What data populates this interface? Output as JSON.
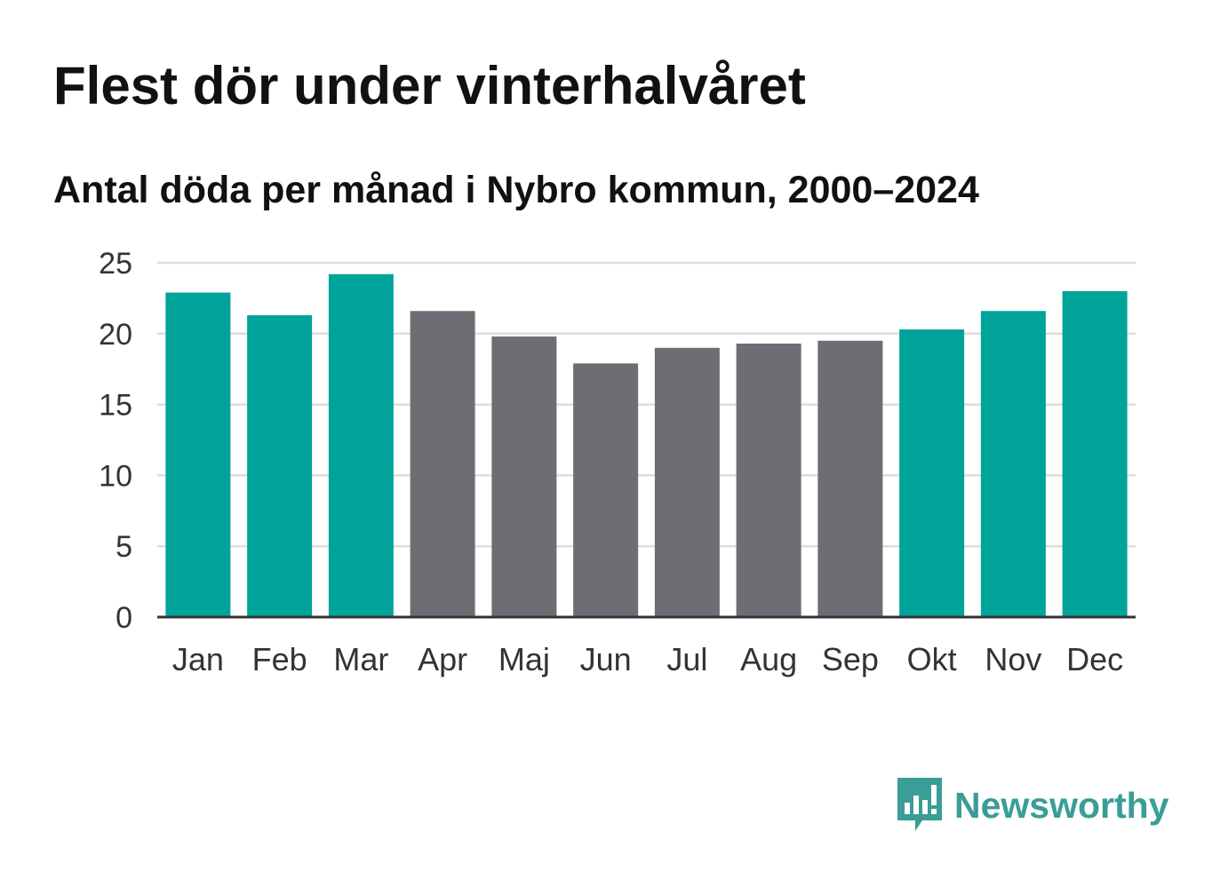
{
  "title": "Flest dör under vinterhalvåret",
  "subtitle": "Antal döda per månad i Nybro kommun, 2000–2024",
  "brand": {
    "name": "Newsworthy",
    "icon": "newsworthy-logo-icon"
  },
  "colors": {
    "winter": "#00a39a",
    "summer": "#6e6d73",
    "grid": "#dddddd",
    "axis": "#333333",
    "brand": "#3a9d96"
  },
  "chart_data": {
    "type": "bar",
    "title": "Flest dör under vinterhalvåret",
    "subtitle": "Antal döda per månad i Nybro kommun, 2000–2024",
    "xlabel": "",
    "ylabel": "",
    "ylim": [
      0,
      25
    ],
    "yticks": [
      0,
      5,
      10,
      15,
      20,
      25
    ],
    "grid": true,
    "categories": [
      "Jan",
      "Feb",
      "Mar",
      "Apr",
      "Maj",
      "Jun",
      "Jul",
      "Aug",
      "Sep",
      "Okt",
      "Nov",
      "Dec"
    ],
    "values": [
      22.9,
      21.3,
      24.2,
      21.6,
      19.8,
      17.9,
      19.0,
      19.3,
      19.5,
      20.3,
      21.6,
      23.0
    ],
    "highlight": [
      true,
      true,
      true,
      false,
      false,
      false,
      false,
      false,
      false,
      true,
      true,
      true
    ]
  }
}
